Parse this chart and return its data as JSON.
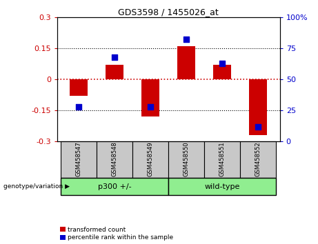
{
  "title": "GDS3598 / 1455026_at",
  "samples": [
    "GSM458547",
    "GSM458548",
    "GSM458549",
    "GSM458550",
    "GSM458551",
    "GSM458552"
  ],
  "red_values": [
    -0.08,
    0.07,
    -0.18,
    0.16,
    0.07,
    -0.27
  ],
  "blue_values_pct": [
    28,
    68,
    28,
    82,
    63,
    12
  ],
  "ylim_left": [
    -0.3,
    0.3
  ],
  "ylim_right": [
    0,
    100
  ],
  "yticks_left": [
    -0.3,
    -0.15,
    0,
    0.15,
    0.3
  ],
  "yticks_right": [
    0,
    25,
    50,
    75,
    100
  ],
  "ytick_labels_right": [
    "0",
    "25",
    "50",
    "75",
    "100%"
  ],
  "groups": [
    {
      "label": "p300 +/-",
      "start": 0,
      "end": 3
    },
    {
      "label": "wild-type",
      "start": 3,
      "end": 6
    }
  ],
  "group_label": "genotype/variation",
  "legend_red": "transformed count",
  "legend_blue": "percentile rank within the sample",
  "bar_color": "#CC0000",
  "dot_color": "#0000CC",
  "zero_line_color": "#CC0000",
  "dotted_line_color": "#000000",
  "bar_width": 0.5,
  "dot_size": 35,
  "background_plot": "#FFFFFF",
  "background_label": "#C8C8C8",
  "background_group": "#90EE90"
}
